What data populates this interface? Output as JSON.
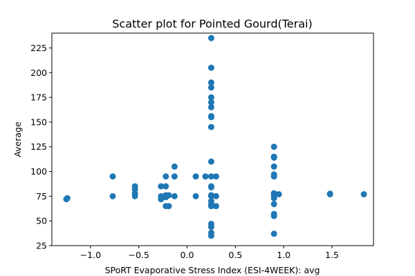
{
  "chart_data": {
    "type": "scatter",
    "title": "Scatter plot for Pointed Gourd(Terai)",
    "xlabel": "SPoRT Evaporative Stress Index (ESI-4WEEK): avg",
    "ylabel": "Average",
    "xlim": [
      -1.4,
      1.93
    ],
    "ylim": [
      25,
      240
    ],
    "x_ticks": [
      -1.0,
      -0.5,
      0.0,
      0.5,
      1.0,
      1.5
    ],
    "x_tick_labels": [
      "−1.0",
      "−0.5",
      "0.0",
      "0.5",
      "1.0",
      "1.5"
    ],
    "y_ticks": [
      25,
      50,
      75,
      100,
      125,
      150,
      175,
      200,
      225
    ],
    "y_tick_labels": [
      "25",
      "50",
      "75",
      "100",
      "125",
      "150",
      "175",
      "200",
      "225"
    ],
    "grid": false,
    "color": "#1f77b4",
    "points": [
      [
        -1.25,
        72
      ],
      [
        -1.24,
        73
      ],
      [
        -0.77,
        95
      ],
      [
        -0.77,
        75
      ],
      [
        -0.54,
        85
      ],
      [
        -0.54,
        82
      ],
      [
        -0.54,
        78
      ],
      [
        -0.54,
        75
      ],
      [
        -0.27,
        85
      ],
      [
        -0.27,
        75
      ],
      [
        -0.27,
        72
      ],
      [
        -0.22,
        95
      ],
      [
        -0.22,
        85
      ],
      [
        -0.22,
        76
      ],
      [
        -0.22,
        74
      ],
      [
        -0.22,
        65
      ],
      [
        -0.19,
        76
      ],
      [
        -0.19,
        65
      ],
      [
        -0.13,
        105
      ],
      [
        -0.13,
        95
      ],
      [
        -0.13,
        75
      ],
      [
        0.09,
        95
      ],
      [
        0.09,
        75
      ],
      [
        0.19,
        95
      ],
      [
        0.25,
        235
      ],
      [
        0.25,
        205
      ],
      [
        0.25,
        190
      ],
      [
        0.25,
        185
      ],
      [
        0.25,
        175
      ],
      [
        0.25,
        170
      ],
      [
        0.25,
        165
      ],
      [
        0.25,
        156
      ],
      [
        0.25,
        155
      ],
      [
        0.25,
        145
      ],
      [
        0.25,
        110
      ],
      [
        0.25,
        95
      ],
      [
        0.25,
        85
      ],
      [
        0.25,
        84
      ],
      [
        0.25,
        76
      ],
      [
        0.25,
        75
      ],
      [
        0.25,
        70
      ],
      [
        0.25,
        67
      ],
      [
        0.25,
        65
      ],
      [
        0.25,
        47
      ],
      [
        0.25,
        44
      ],
      [
        0.25,
        38
      ],
      [
        0.25,
        35
      ],
      [
        0.3,
        95
      ],
      [
        0.3,
        75
      ],
      [
        0.3,
        65
      ],
      [
        0.9,
        125
      ],
      [
        0.9,
        115
      ],
      [
        0.9,
        114
      ],
      [
        0.9,
        105
      ],
      [
        0.9,
        97
      ],
      [
        0.9,
        95
      ],
      [
        0.9,
        78
      ],
      [
        0.9,
        76
      ],
      [
        0.9,
        73
      ],
      [
        0.9,
        67
      ],
      [
        0.9,
        57
      ],
      [
        0.9,
        55
      ],
      [
        0.9,
        37
      ],
      [
        0.95,
        77
      ],
      [
        1.48,
        77
      ],
      [
        1.48,
        77.5
      ],
      [
        1.83,
        77
      ]
    ]
  }
}
